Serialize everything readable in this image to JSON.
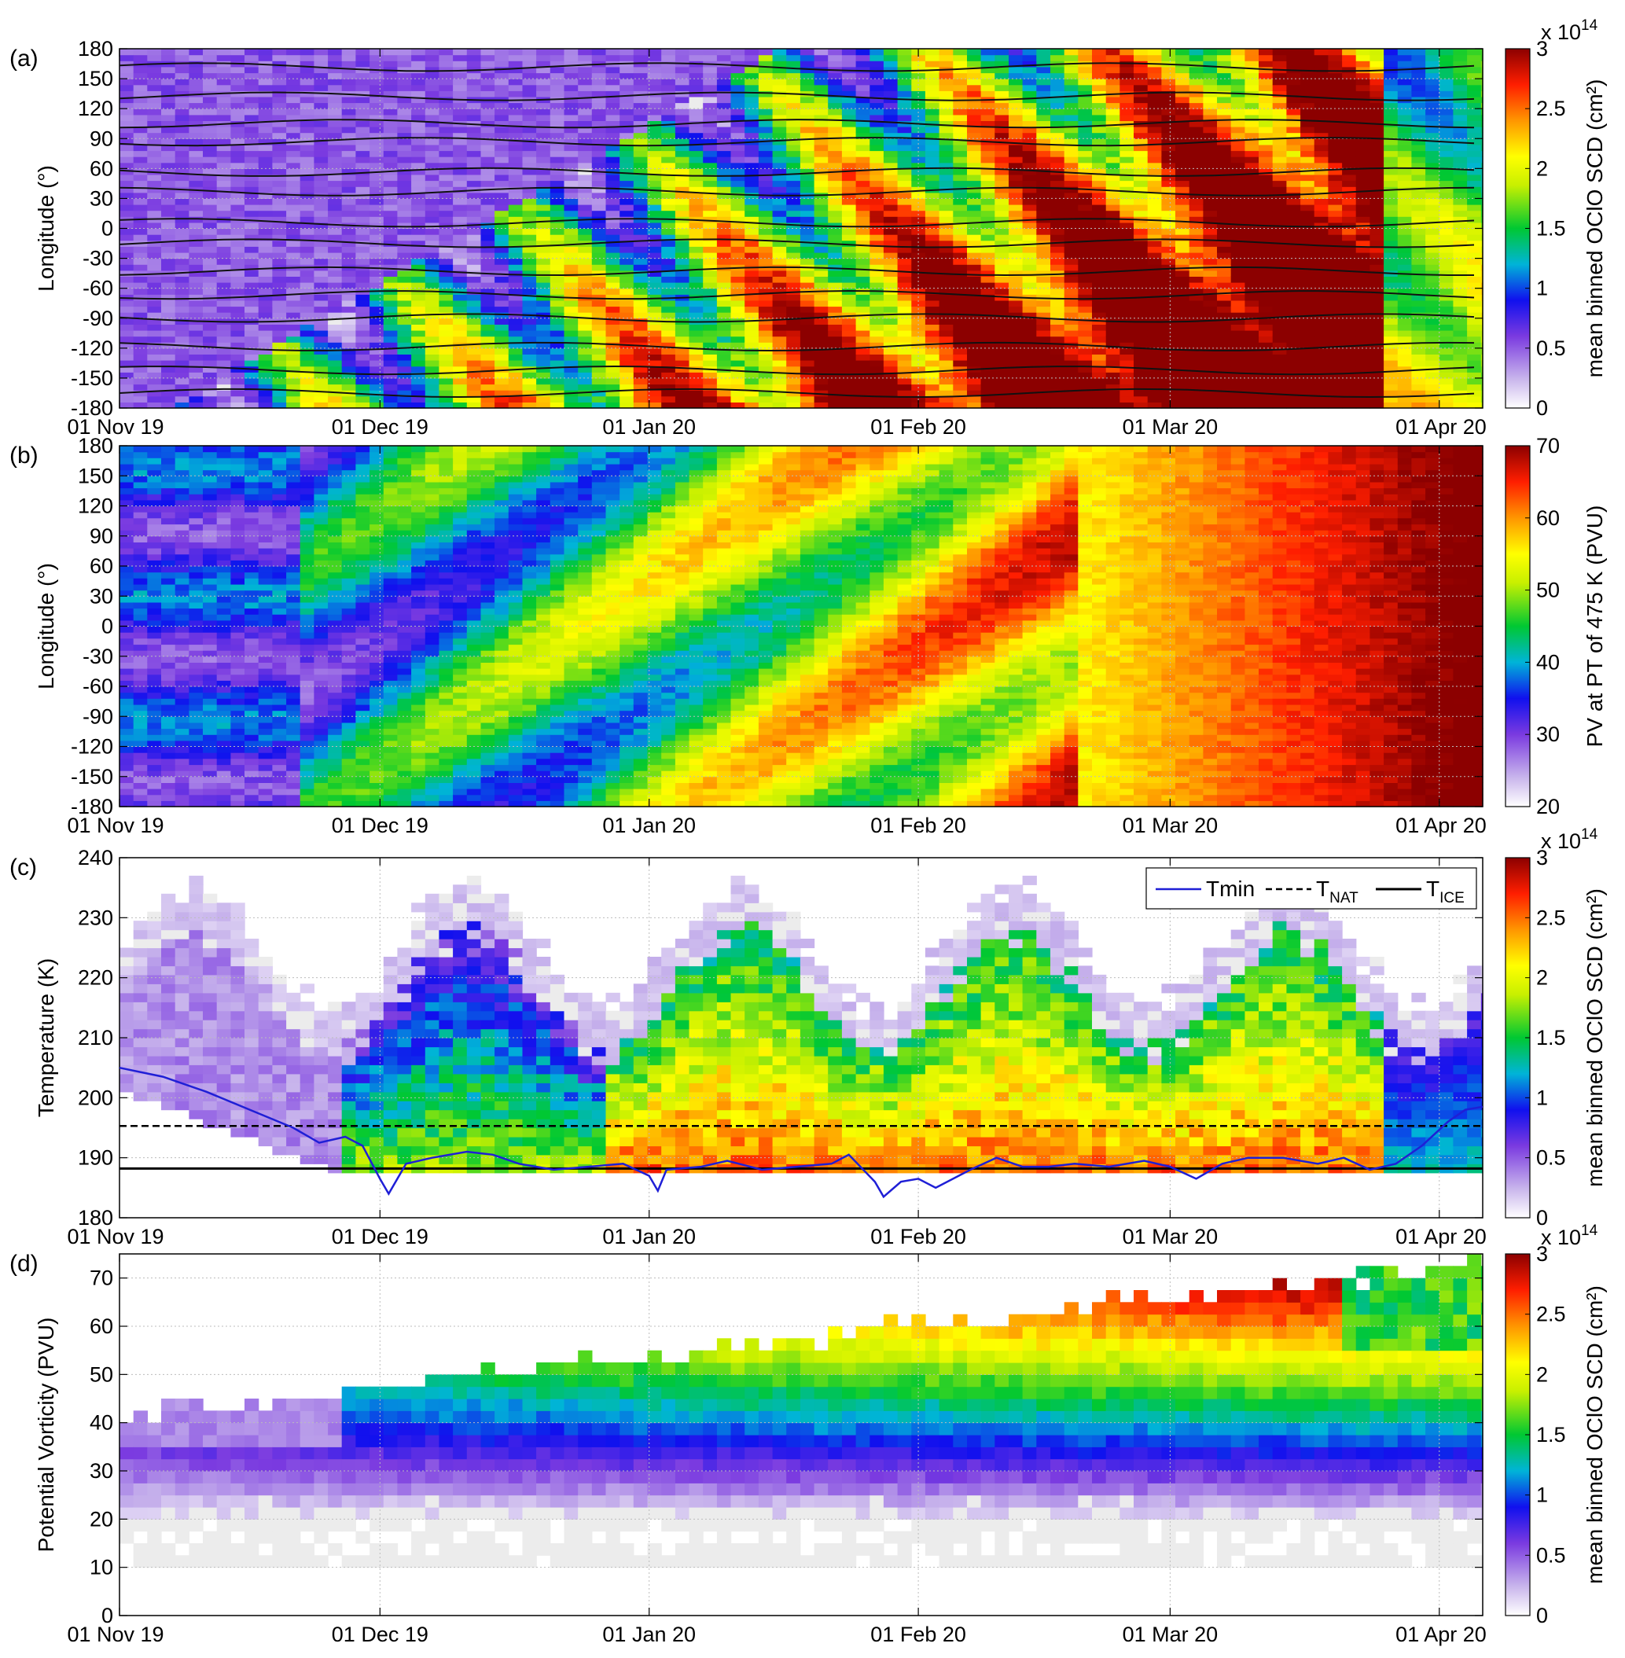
{
  "x_tick_labels": [
    "01 Nov 19",
    "01 Dec 19",
    "01 Jan 20",
    "01 Feb 20",
    "01 Mar 20",
    "01 Apr 20"
  ],
  "x_tick_days": [
    0,
    30,
    61,
    92,
    121,
    152
  ],
  "chart_data": [
    {
      "type": "heatmap",
      "panel_label": "(a)",
      "ylabel": "Longitude (°)",
      "ylim": [
        -180,
        180
      ],
      "y_ticks": [
        180,
        150,
        120,
        90,
        60,
        30,
        0,
        -30,
        -60,
        -90,
        -120,
        -150,
        -180
      ],
      "colorbar": {
        "label": "mean binned OClO SCD (cm²)",
        "exponent": "x 10",
        "exponent_power": "14",
        "range": [
          0,
          3
        ],
        "ticks": [
          "3",
          "2.5",
          "2",
          "1.5",
          "1",
          "0.5",
          "0"
        ]
      },
      "note": "OClO SCD by longitude vs time, with brown, white and black contour lines"
    },
    {
      "type": "heatmap",
      "panel_label": "(b)",
      "ylabel": "Longitude (°)",
      "ylim": [
        -180,
        180
      ],
      "y_ticks": [
        180,
        150,
        120,
        90,
        60,
        30,
        0,
        -30,
        -60,
        -90,
        -120,
        -150,
        -180
      ],
      "colorbar": {
        "label": "PV at PT of 475 K (PVU)",
        "range": [
          20,
          70
        ],
        "ticks": [
          "70",
          "60",
          "50",
          "40",
          "30",
          "20"
        ]
      }
    },
    {
      "type": "heatmap",
      "panel_label": "(c)",
      "ylabel": "Temperature (K)",
      "ylim": [
        180,
        240
      ],
      "y_ticks": [
        240,
        230,
        220,
        210,
        200,
        190,
        180
      ],
      "colorbar": {
        "label": "mean binned OClO SCD (cm²)",
        "exponent": "x 10",
        "exponent_power": "14",
        "range": [
          0,
          3
        ],
        "ticks": [
          "3",
          "2.5",
          "2",
          "1.5",
          "1",
          "0.5",
          "0"
        ]
      },
      "lines": {
        "T_NAT": 195.3,
        "T_ICE": 188.2,
        "Tmin": [
          [
            0,
            205
          ],
          [
            5,
            203.5
          ],
          [
            10,
            201
          ],
          [
            15,
            198
          ],
          [
            20,
            195
          ],
          [
            23,
            192.5
          ],
          [
            26,
            193.5
          ],
          [
            28,
            192
          ],
          [
            30,
            186.5
          ],
          [
            31,
            184
          ],
          [
            33,
            189
          ],
          [
            36,
            190
          ],
          [
            40,
            191
          ],
          [
            43,
            190.5
          ],
          [
            46,
            189
          ],
          [
            50,
            188
          ],
          [
            54,
            188.5
          ],
          [
            58,
            189
          ],
          [
            61,
            187
          ],
          [
            62,
            184.5
          ],
          [
            63,
            188
          ],
          [
            67,
            188.5
          ],
          [
            70,
            189.5
          ],
          [
            74,
            188
          ],
          [
            78,
            188.5
          ],
          [
            82,
            189
          ],
          [
            84,
            190.5
          ],
          [
            87,
            186
          ],
          [
            88,
            183.5
          ],
          [
            90,
            186
          ],
          [
            92,
            186.5
          ],
          [
            94,
            185
          ],
          [
            98,
            188
          ],
          [
            101,
            190
          ],
          [
            104,
            188.5
          ],
          [
            107,
            188.5
          ],
          [
            110,
            189
          ],
          [
            114,
            188.5
          ],
          [
            118,
            189.5
          ],
          [
            121,
            188.5
          ],
          [
            124,
            186.5
          ],
          [
            127,
            189
          ],
          [
            130,
            190
          ],
          [
            134,
            190
          ],
          [
            138,
            189
          ],
          [
            141,
            190
          ],
          [
            144,
            188
          ],
          [
            147,
            189
          ],
          [
            150,
            192
          ],
          [
            153,
            196
          ],
          [
            155,
            198
          ],
          [
            157,
            198.5
          ]
        ]
      },
      "legend": {
        "placement": "top-right",
        "entries": [
          {
            "name": "Tmin",
            "color": "#1f1fd6",
            "style": "solid"
          },
          {
            "name": "T",
            "sub": "NAT",
            "color": "#000000",
            "style": "dashed"
          },
          {
            "name": "T",
            "sub": "ICE",
            "color": "#000000",
            "style": "solid"
          }
        ]
      }
    },
    {
      "type": "heatmap",
      "panel_label": "(d)",
      "ylabel": "Potential Vorticity (PVU)",
      "ylim": [
        0,
        75
      ],
      "y_ticks": [
        70,
        60,
        50,
        40,
        30,
        20,
        10,
        0
      ],
      "colorbar": {
        "label": "mean binned OClO SCD (cm²)",
        "exponent": "x 10",
        "exponent_power": "14",
        "range": [
          0,
          3
        ],
        "ticks": [
          "3",
          "2.5",
          "2",
          "1.5",
          "1",
          "0.5",
          "0"
        ]
      }
    }
  ]
}
